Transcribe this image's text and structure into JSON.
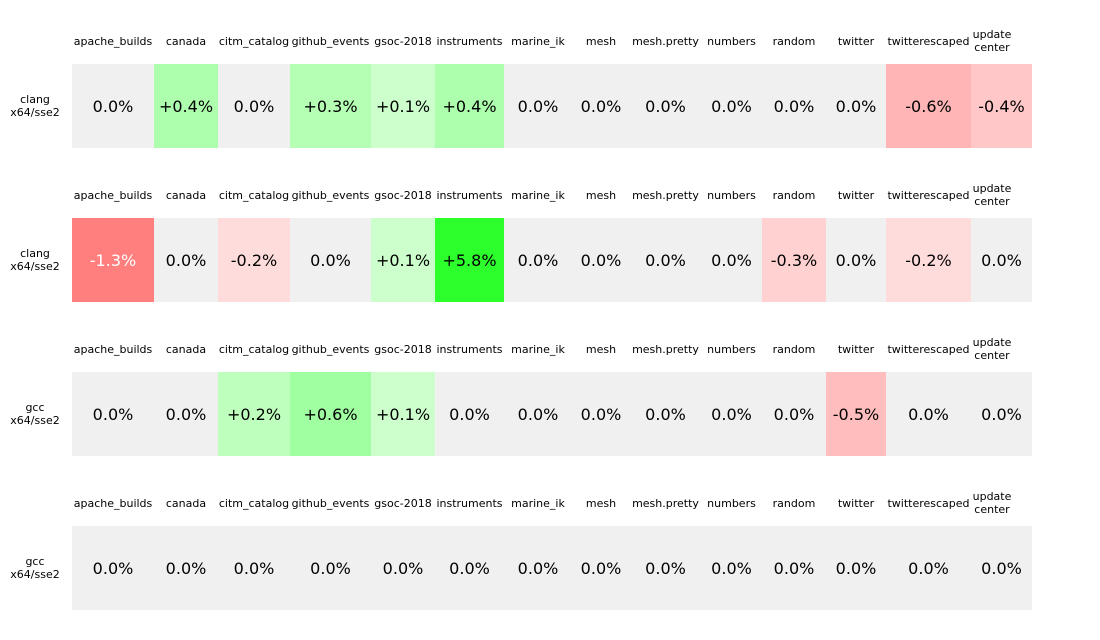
{
  "chart_data": {
    "type": "heatmap",
    "columns": [
      "apache_builds",
      "canada",
      "citm_catalog",
      "github_events",
      "gsoc-2018",
      "instruments",
      "marine_ik",
      "mesh",
      "mesh.pretty",
      "numbers",
      "random",
      "twitter",
      "twitterescaped",
      "update-center"
    ],
    "rows": [
      {
        "label_lines": [
          "clang",
          "x64/sse2"
        ],
        "values": [
          0.0,
          0.4,
          0.0,
          0.3,
          0.1,
          0.4,
          0.0,
          0.0,
          0.0,
          0.0,
          0.0,
          0.0,
          -0.6,
          -0.4
        ]
      },
      {
        "label_lines": [
          "clang",
          "x64/sse2"
        ],
        "values": [
          -1.3,
          0.0,
          -0.2,
          0.0,
          0.1,
          5.8,
          0.0,
          0.0,
          0.0,
          0.0,
          -0.3,
          0.0,
          -0.2,
          0.0
        ]
      },
      {
        "label_lines": [
          "gcc",
          "x64/sse2"
        ],
        "values": [
          0.0,
          0.0,
          0.2,
          0.6,
          0.1,
          0.0,
          0.0,
          0.0,
          0.0,
          0.0,
          0.0,
          -0.5,
          0.0,
          0.0
        ]
      },
      {
        "label_lines": [
          "gcc",
          "x64/sse2"
        ],
        "values": [
          0.0,
          0.0,
          0.0,
          0.0,
          0.0,
          0.0,
          0.0,
          0.0,
          0.0,
          0.0,
          0.0,
          0.0,
          0.0,
          0.0
        ]
      }
    ],
    "value_format": "signed percent, one decimal",
    "colors": {
      "neutral": "#f0f0f0",
      "positive_strong": "#22ff22",
      "negative_strong": "#ff7f7f"
    }
  }
}
